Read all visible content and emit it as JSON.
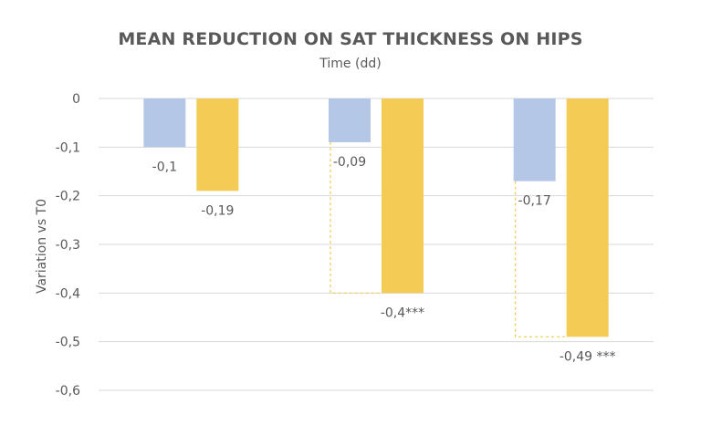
{
  "chart_data": {
    "type": "bar",
    "title": "MEAN REDUCTION ON SAT THICKNESS ON HIPS",
    "subtitle": "Time (dd)",
    "xlabel": "",
    "ylabel": "Variation vs T0",
    "ylim": [
      -0.6,
      0
    ],
    "yticks": [
      {
        "value": 0,
        "label": "0"
      },
      {
        "value": -0.1,
        "label": "-0,1"
      },
      {
        "value": -0.2,
        "label": "-0,2"
      },
      {
        "value": -0.3,
        "label": "-0,3"
      },
      {
        "value": -0.4,
        "label": "-0,4"
      },
      {
        "value": -0.5,
        "label": "-0,5"
      },
      {
        "value": -0.6,
        "label": "-0,6"
      }
    ],
    "grid": true,
    "legend": "none",
    "categories": [
      "",
      "",
      ""
    ],
    "series": [
      {
        "color": "#b4c7e7",
        "values": [
          -0.1,
          -0.09,
          -0.17
        ],
        "labels": [
          "-0,1",
          "-0,09",
          "-0,17"
        ]
      },
      {
        "color": "#f4cb55",
        "values": [
          -0.19,
          -0.4,
          -0.49
        ],
        "labels": [
          "-0,19",
          "-0,4***",
          "-0,49 ***"
        ]
      }
    ],
    "annotations": [
      {
        "type": "dashed-bracket",
        "category": 1,
        "from_series": 0,
        "to_series": 1
      },
      {
        "type": "dashed-bracket",
        "category": 2,
        "from_series": 0,
        "to_series": 1
      }
    ]
  }
}
